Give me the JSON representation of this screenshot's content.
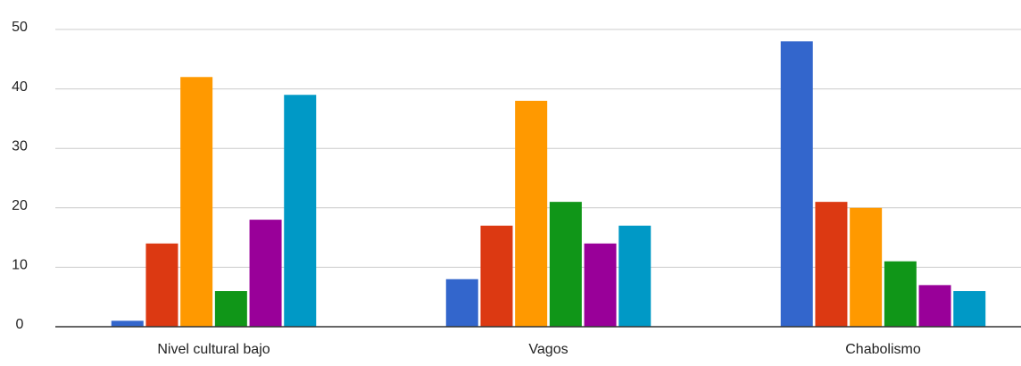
{
  "chart_data": {
    "type": "bar",
    "categories": [
      "Nivel cultural bajo",
      "Vagos",
      "Chabolismo"
    ],
    "series": [
      {
        "color": "#3366cc",
        "values": [
          1,
          8,
          48
        ]
      },
      {
        "color": "#dc3912",
        "values": [
          14,
          17,
          21
        ]
      },
      {
        "color": "#ff9900",
        "values": [
          42,
          38,
          20
        ]
      },
      {
        "color": "#109618",
        "values": [
          6,
          21,
          11
        ]
      },
      {
        "color": "#990099",
        "values": [
          18,
          14,
          7
        ]
      },
      {
        "color": "#0099c6",
        "values": [
          39,
          17,
          6
        ]
      }
    ],
    "ylim": [
      0,
      50
    ],
    "yticks": [
      0,
      10,
      20,
      30,
      40,
      50
    ],
    "grid": true
  }
}
